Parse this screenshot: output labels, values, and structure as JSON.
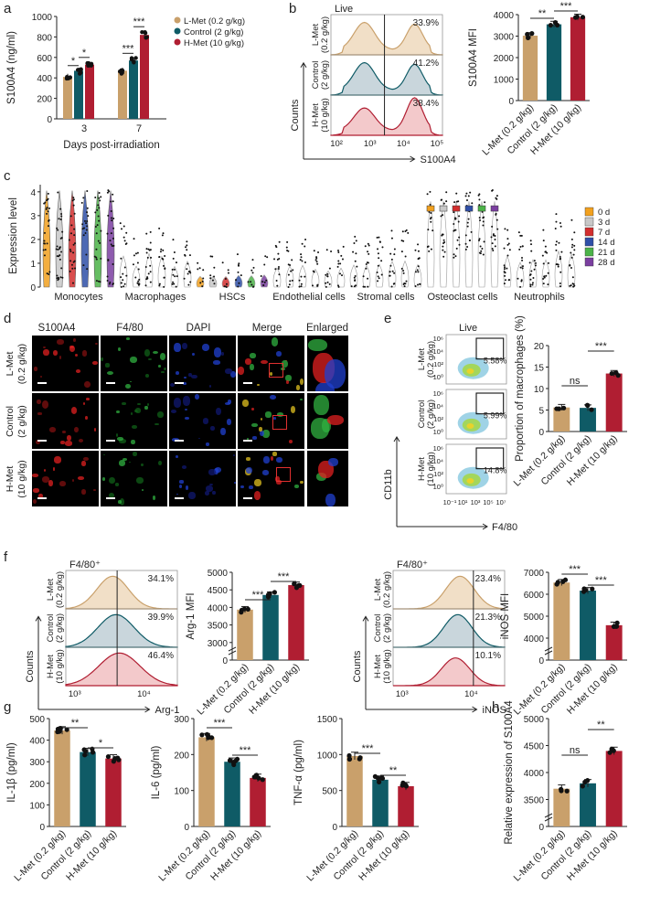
{
  "colors": {
    "lmet": "#C9A06B",
    "control": "#0F5B66",
    "hmet": "#B01E32",
    "lmet_fill": "#F1DFC7",
    "control_fill": "#C9D6DC",
    "hmet_fill": "#F3C9CB"
  },
  "groups": [
    "L-Met (0.2 g/kg)",
    "Control (2 g/kg)",
    "H-Met (10 g/kg)"
  ],
  "group_rowlabels": [
    [
      "L-Met",
      "(0.2 g/kg)"
    ],
    [
      "Control",
      "(2 g/kg)"
    ],
    [
      "H-Met",
      "(10 g/kg)"
    ]
  ],
  "panels": {
    "a": {
      "letter": "a",
      "ylabel": "S100A4 (ng/ml)",
      "xlabel": "Days post-irradiation",
      "yticks": [
        "0",
        "200",
        "400",
        "600",
        "800",
        "1000"
      ],
      "categories": [
        "3",
        "7"
      ],
      "legend": [
        "L-Met (0.2 g/kg)",
        "Control (2 g/kg)",
        "H-Met (10 g/kg)"
      ],
      "sig": [
        "*",
        "*",
        "***",
        "***"
      ]
    },
    "b": {
      "letter": "b",
      "gate_title": "Live",
      "y_axis": "Counts",
      "x_axis": "S100A4",
      "percents": [
        "33.9%",
        "41.2%",
        "38.4%"
      ],
      "xticks": [
        "10²",
        "10³",
        "10⁴",
        "10⁵"
      ],
      "bar_ylabel": "S100A4 MFI",
      "yticks": [
        "0",
        "1000",
        "2000",
        "3000",
        "4000"
      ],
      "sig": [
        "**",
        "***"
      ]
    },
    "c": {
      "letter": "c",
      "ylabel": "Expression level",
      "yticks": [
        "0",
        "1",
        "2",
        "3",
        "4"
      ],
      "cell_types": [
        "Monocytes",
        "Macrophages",
        "HSCs",
        "Endothelial cells",
        "Stromal cells",
        "Osteoclast cells",
        "Neutrophils"
      ],
      "legend": [
        "0 d",
        "3 d",
        "7 d",
        "14 d",
        "21 d",
        "28 d"
      ],
      "legend_colors": [
        "#F2A11F",
        "#C8C8C8",
        "#D32E2E",
        "#2F4FA8",
        "#4CB348",
        "#7B3FA0"
      ]
    },
    "d": {
      "letter": "d",
      "headers": [
        "S100A4",
        "F4/80",
        "DAPI",
        "Merge",
        "Enlarged"
      ]
    },
    "e": {
      "letter": "e",
      "gate_title": "Live",
      "percents": [
        "5.58%",
        "5.99%",
        "14.8%"
      ],
      "y_axis": "CD11b",
      "x_axis": "F4/80",
      "yticks": [
        "10⁶",
        "10⁴",
        "10²",
        "10⁰"
      ],
      "xticks": [
        "10⁻¹",
        "10¹",
        "10³",
        "10⁵",
        "10⁷"
      ],
      "bar_ylabel": "Proportion of macrophages (%)",
      "bar_yticks": [
        "0",
        "5",
        "10",
        "15",
        "20"
      ],
      "sig": [
        "ns",
        "***"
      ]
    },
    "f": {
      "letter": "f",
      "gate_title": "F4/80⁺",
      "y_axis": "Counts",
      "arg": {
        "x_axis": "Arg-1",
        "percents": [
          "34.1%",
          "39.9%",
          "46.4%"
        ],
        "xticks": [
          "10³",
          "10⁴"
        ],
        "bar_ylabel": "Arg-1 MFI",
        "yticks": [
          "0",
          "3000",
          "3500",
          "4000",
          "4500",
          "5000"
        ],
        "sig": [
          "***",
          "***"
        ]
      },
      "inos": {
        "x_axis": "iNOS",
        "percents": [
          "23.4%",
          "21.3%",
          "10.1%"
        ],
        "xticks": [
          "10³",
          "10⁴"
        ],
        "bar_ylabel": "iNOS MFI",
        "yticks": [
          "0",
          "4000",
          "5000",
          "6000",
          "7000"
        ],
        "sig": [
          "***",
          "***"
        ]
      }
    },
    "g": {
      "letter": "g",
      "il1b": {
        "ylabel": "IL-1β (pg/ml)",
        "yticks": [
          "0",
          "100",
          "200",
          "300",
          "400",
          "500"
        ],
        "sig": [
          "**",
          "*"
        ]
      },
      "il6": {
        "ylabel": "IL-6 (pg/ml)",
        "yticks": [
          "0",
          "100",
          "200",
          "300"
        ],
        "sig": [
          "***",
          "***"
        ]
      },
      "tnfa": {
        "ylabel": "TNF-α (pg/ml)",
        "yticks": [
          "0",
          "500",
          "1000",
          "1500"
        ],
        "sig": [
          "***",
          "**"
        ]
      }
    },
    "h": {
      "letter": "h",
      "ylabel": "Relative expression of S100A4",
      "yticks": [
        "0",
        "3500",
        "4000",
        "4500",
        "5000"
      ],
      "sig": [
        "ns",
        "**"
      ]
    }
  },
  "chart_data": [
    {
      "panel": "a",
      "type": "bar",
      "categories": [
        "3",
        "7"
      ],
      "series": [
        {
          "name": "L-Met (0.2 g/kg)",
          "values": [
            410,
            470
          ]
        },
        {
          "name": "Control (2 g/kg)",
          "values": [
            470,
            570
          ]
        },
        {
          "name": "H-Met (10 g/kg)",
          "values": [
            530,
            820
          ]
        }
      ],
      "ylabel": "S100A4 (ng/ml)",
      "xlabel": "Days post-irradiation",
      "ylim": [
        0,
        1000
      ]
    },
    {
      "panel": "b",
      "type": "bar",
      "categories": [
        "L-Met (0.2 g/kg)",
        "Control (2 g/kg)",
        "H-Met (10 g/kg)"
      ],
      "values": [
        3020,
        3550,
        3880
      ],
      "ylabel": "S100A4 MFI",
      "ylim": [
        0,
        4000
      ]
    },
    {
      "panel": "e",
      "type": "bar",
      "categories": [
        "L-Met (0.2 g/kg)",
        "Control (2 g/kg)",
        "H-Met (10 g/kg)"
      ],
      "values": [
        5.6,
        5.5,
        13.5
      ],
      "ylabel": "Proportion of macrophages (%)",
      "ylim": [
        0,
        20
      ]
    },
    {
      "panel": "f-arg",
      "type": "bar",
      "categories": [
        "L-Met (0.2 g/kg)",
        "Control (2 g/kg)",
        "H-Met (10 g/kg)"
      ],
      "values": [
        3980,
        4380,
        4650
      ],
      "ylabel": "Arg-1 MFI",
      "ylim": [
        3000,
        5000
      ]
    },
    {
      "panel": "f-inos",
      "type": "bar",
      "categories": [
        "L-Met (0.2 g/kg)",
        "Control (2 g/kg)",
        "H-Met (10 g/kg)"
      ],
      "values": [
        6580,
        6250,
        4830
      ],
      "ylabel": "iNOS MFI",
      "ylim": [
        4000,
        7000
      ]
    },
    {
      "panel": "g-il1b",
      "type": "bar",
      "categories": [
        "L-Met (0.2 g/kg)",
        "Control (2 g/kg)",
        "H-Met (10 g/kg)"
      ],
      "values": [
        445,
        345,
        315
      ],
      "ylabel": "IL-1β (pg/ml)",
      "ylim": [
        0,
        500
      ]
    },
    {
      "panel": "g-il6",
      "type": "bar",
      "categories": [
        "L-Met (0.2 g/kg)",
        "Control (2 g/kg)",
        "H-Met (10 g/kg)"
      ],
      "values": [
        248,
        180,
        135
      ],
      "ylabel": "IL-6 (pg/ml)",
      "ylim": [
        0,
        300
      ]
    },
    {
      "panel": "g-tnfa",
      "type": "bar",
      "categories": [
        "L-Met (0.2 g/kg)",
        "Control (2 g/kg)",
        "H-Met (10 g/kg)"
      ],
      "values": [
        980,
        650,
        560
      ],
      "ylabel": "TNF-α (pg/ml)",
      "ylim": [
        0,
        1500
      ]
    },
    {
      "panel": "h",
      "type": "bar",
      "categories": [
        "L-Met (0.2 g/kg)",
        "Control (2 g/kg)",
        "H-Met (10 g/kg)"
      ],
      "values": [
        3700,
        3800,
        4400
      ],
      "ylabel": "Relative expression of S100A4",
      "ylim": [
        3500,
        5000
      ]
    }
  ]
}
